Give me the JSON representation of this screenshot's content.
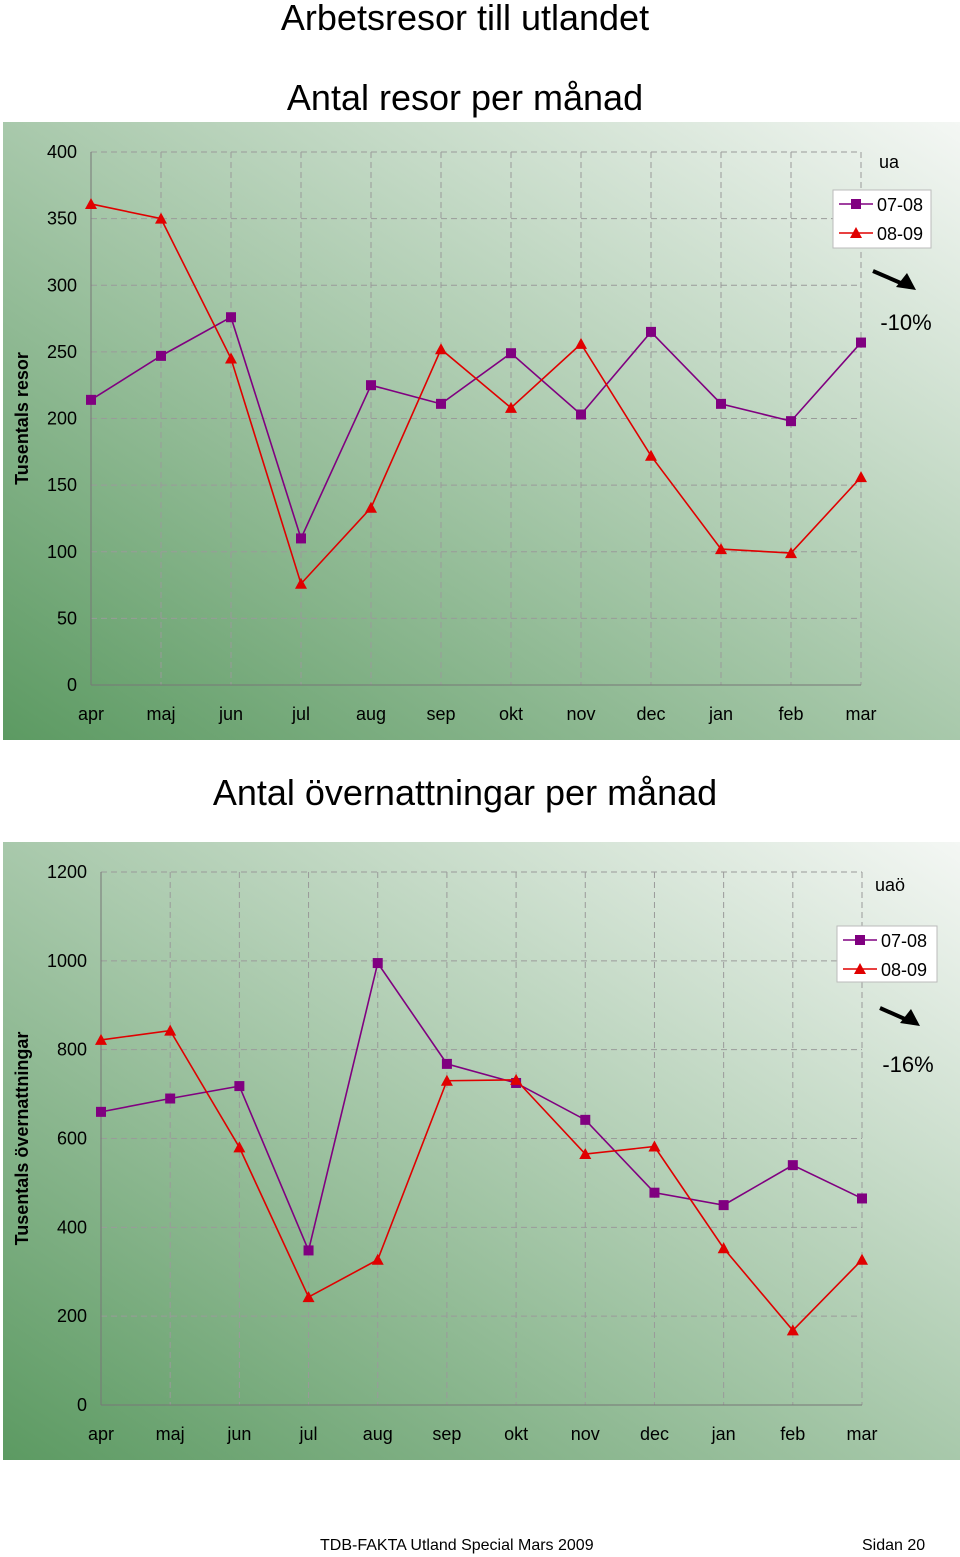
{
  "page": {
    "title": "Arbetsresor till utlandet",
    "footer_left": "TDB-FAKTA Utland Special Mars 2009",
    "footer_right": "Sidan 20"
  },
  "colors": {
    "series_0708": "#800080",
    "series_0809": "#e00000",
    "background_light": "#f4f7f4",
    "background_dark": "#5c9a62",
    "grid": "#9a9a9a"
  },
  "chart_data": [
    {
      "type": "line",
      "title": "Antal resor per månad",
      "ylabel": "Tusentals resor",
      "xlabel": "",
      "categories": [
        "apr",
        "maj",
        "jun",
        "jul",
        "aug",
        "sep",
        "okt",
        "nov",
        "dec",
        "jan",
        "feb",
        "mar"
      ],
      "ylim": [
        0,
        400
      ],
      "yticks": [
        0,
        50,
        100,
        150,
        200,
        250,
        300,
        350,
        400
      ],
      "grid": true,
      "legend_position": "top-right",
      "legend_title": "ua",
      "annotation": "-10%",
      "annotation_icon": "arrow-down-right-icon",
      "series": [
        {
          "name": "07-08",
          "marker": "square",
          "color": "#800080",
          "values": [
            214,
            247,
            276,
            110,
            225,
            211,
            249,
            203,
            265,
            211,
            198,
            257
          ]
        },
        {
          "name": "08-09",
          "marker": "triangle",
          "color": "#e00000",
          "values": [
            361,
            350,
            245,
            76,
            133,
            252,
            208,
            256,
            172,
            102,
            99,
            156
          ]
        }
      ]
    },
    {
      "type": "line",
      "title": "Antal övernattningar per månad",
      "ylabel": "Tusentals övernattningar",
      "xlabel": "",
      "categories": [
        "apr",
        "maj",
        "jun",
        "jul",
        "aug",
        "sep",
        "okt",
        "nov",
        "dec",
        "jan",
        "feb",
        "mar"
      ],
      "ylim": [
        0,
        1200
      ],
      "yticks": [
        0,
        200,
        400,
        600,
        800,
        1000,
        1200
      ],
      "grid": true,
      "legend_position": "top-right",
      "legend_title": "uaö",
      "annotation": "-16%",
      "annotation_icon": "arrow-down-right-icon",
      "series": [
        {
          "name": "07-08",
          "marker": "square",
          "color": "#800080",
          "values": [
            660,
            690,
            718,
            348,
            995,
            768,
            725,
            642,
            478,
            450,
            540,
            465
          ]
        },
        {
          "name": "08-09",
          "marker": "triangle",
          "color": "#e00000",
          "values": [
            822,
            843,
            580,
            243,
            327,
            730,
            732,
            565,
            582,
            353,
            168,
            327
          ]
        }
      ]
    }
  ]
}
